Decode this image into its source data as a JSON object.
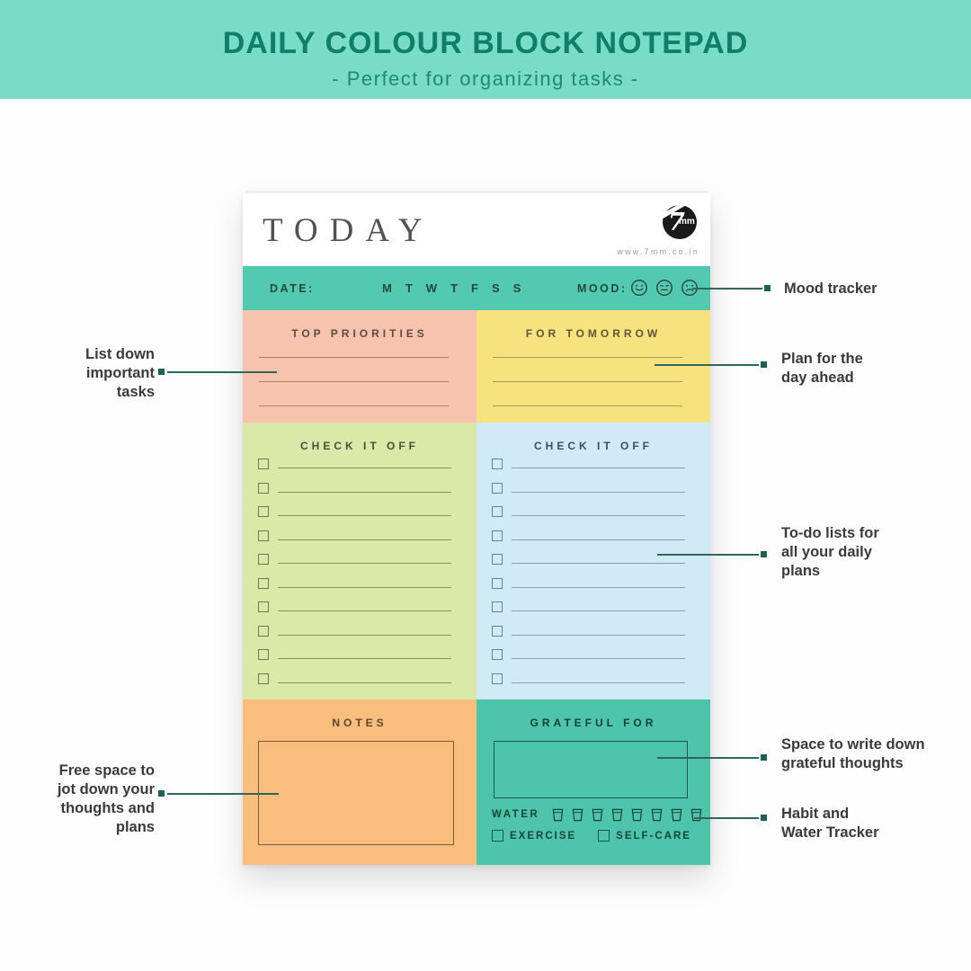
{
  "banner": {
    "title": "DAILY COLOUR BLOCK NOTEPAD",
    "subtitle": "-  Perfect for organizing tasks  -"
  },
  "notepad": {
    "header": {
      "title": "TODAY",
      "brand": "7mm",
      "website": "www.7mm.co.in"
    },
    "date_bar": {
      "date_label": "DATE:",
      "days": [
        "M",
        "T",
        "W",
        "T",
        "F",
        "S",
        "S"
      ],
      "mood_label": "MOOD:",
      "mood_icons": [
        "happy-face",
        "neutral-face",
        "sad-face"
      ]
    },
    "sections": {
      "top_priorities": {
        "title": "TOP PRIORITIES",
        "ruled_lines": 3,
        "bg": "#f8c3ae"
      },
      "for_tomorrow": {
        "title": "FOR TOMORROW",
        "ruled_lines": 3,
        "bg": "#f7e37d"
      },
      "check_left": {
        "title": "CHECK IT OFF",
        "checkbox_rows": 10,
        "bg": "#d9e9a8"
      },
      "check_right": {
        "title": "CHECK IT OFF",
        "checkbox_rows": 10,
        "bg": "#d1eaf7"
      },
      "notes": {
        "title": "NOTES",
        "bg": "#f9bd7d"
      },
      "grateful": {
        "title": "GRATEFUL FOR",
        "bg": "#4ec5aa",
        "water_label": "WATER",
        "water_cups": 8,
        "habit_checkboxes": [
          "EXERCISE",
          "SELF-CARE"
        ]
      }
    }
  },
  "callouts": {
    "mood_tracker": {
      "text": "Mood tracker"
    },
    "plan_ahead": {
      "text": "Plan for the\nday ahead"
    },
    "todo_lists": {
      "text": "To-do lists for\nall your daily\nplans"
    },
    "grateful_space": {
      "text": "Space to write down\ngrateful thoughts"
    },
    "habit_tracker": {
      "text": "Habit and\nWater Tracker"
    },
    "important_tasks": {
      "text": "List down\nimportant\ntasks"
    },
    "free_space": {
      "text": "Free space to\njot down your\nthoughts and\nplans"
    }
  },
  "colors": {
    "banner_bg": "#79dcc6",
    "banner_text": "#117e68",
    "date_bar_teal": "#53cab0",
    "pink": "#f8c3ae",
    "yellow": "#f7e37d",
    "green": "#d9e9a8",
    "blue": "#d1eaf7",
    "orange": "#f9bd7d",
    "grateful_teal": "#4ec5aa",
    "callout_line": "#2f685a",
    "callout_marker": "#1d6152"
  }
}
